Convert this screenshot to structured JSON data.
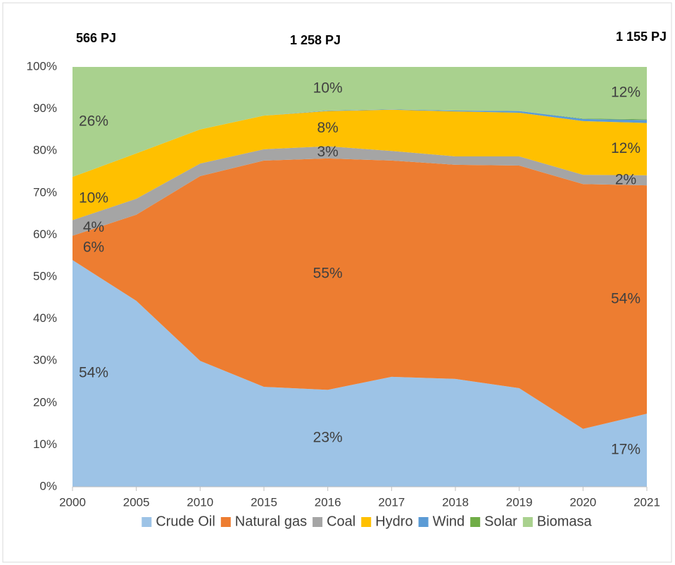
{
  "chart_data": {
    "type": "stacked_area_100",
    "annotations": [
      "566 PJ",
      "1 258 PJ",
      "1 155 PJ"
    ],
    "categories": [
      "2000",
      "2005",
      "2010",
      "2015",
      "2016",
      "2017",
      "2018",
      "2019",
      "2020",
      "2021"
    ],
    "series": [
      {
        "name": "Crude Oil",
        "color": "#9dc3e6",
        "values": [
          54,
          44.3,
          30,
          23.8,
          23.1,
          26.2,
          25.7,
          23.5,
          13.8,
          17.4
        ],
        "value_labels": [
          "54%",
          null,
          null,
          null,
          "23%",
          null,
          null,
          null,
          null,
          "17%"
        ]
      },
      {
        "name": "Natural gas",
        "color": "#ed7d31",
        "values": [
          5.8,
          20.5,
          44,
          53.9,
          55.1,
          51.5,
          51,
          53,
          58.3,
          54.4
        ],
        "value_labels": [
          "6%",
          null,
          null,
          null,
          "55%",
          null,
          null,
          null,
          null,
          "54%"
        ]
      },
      {
        "name": "Coal",
        "color": "#a5a5a5",
        "values": [
          3.7,
          3.8,
          3,
          2.7,
          2.9,
          2.3,
          2,
          2.2,
          2.2,
          2.4
        ],
        "value_labels": [
          "4%",
          null,
          null,
          null,
          "3%",
          null,
          null,
          null,
          null,
          "2%"
        ]
      },
      {
        "name": "Hydro",
        "color": "#ffc000",
        "values": [
          10.3,
          10.8,
          8.1,
          8,
          8.4,
          9.8,
          10.7,
          10.4,
          12.8,
          12.45
        ],
        "value_labels": [
          "10%",
          null,
          null,
          null,
          "8%",
          null,
          null,
          null,
          null,
          "12%"
        ]
      },
      {
        "name": "Wind",
        "color": "#5b9bd5",
        "values": [
          0,
          0,
          0,
          0,
          0.1,
          0.1,
          0.2,
          0.4,
          0.5,
          0.7
        ]
      },
      {
        "name": "Solar",
        "color": "#70ad47",
        "values": [
          0,
          0,
          0,
          0,
          0,
          0,
          0,
          0,
          0.1,
          0.2
        ]
      },
      {
        "name": "Biomasa",
        "color": "#a9d18e",
        "values": [
          26.2,
          20.6,
          14.9,
          11.6,
          10.4,
          10.1,
          10.4,
          10.5,
          12.3,
          12.45
        ],
        "value_labels": [
          "26%",
          null,
          null,
          null,
          "10%",
          null,
          null,
          null,
          null,
          "12%"
        ]
      }
    ],
    "ylim": [
      0,
      100
    ],
    "yticks": [
      {
        "value": 0,
        "label": "0%"
      },
      {
        "value": 10,
        "label": "10%"
      },
      {
        "value": 20,
        "label": "20%"
      },
      {
        "value": 30,
        "label": "30%"
      },
      {
        "value": 40,
        "label": "40%"
      },
      {
        "value": 50,
        "label": "50%"
      },
      {
        "value": 60,
        "label": "60%"
      },
      {
        "value": 70,
        "label": "70%"
      },
      {
        "value": 80,
        "label": "80%"
      },
      {
        "value": 90,
        "label": "90%"
      },
      {
        "value": 100,
        "label": "100%"
      }
    ],
    "legend": "bottom"
  }
}
